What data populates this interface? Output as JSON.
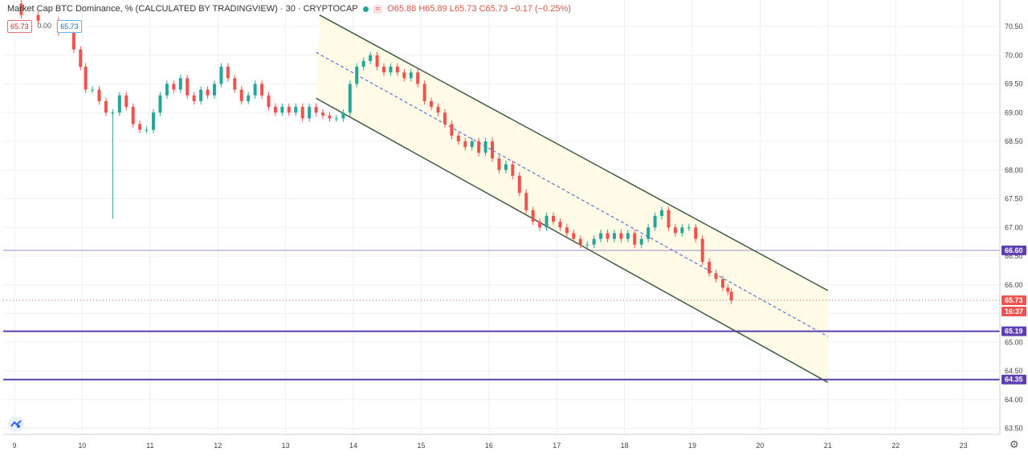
{
  "header": {
    "title": "Market Cap BTC Dominance, % (CALCULATED BY TRADINGVIEW) · 30 · CRYPTOCAP",
    "open_label": "O",
    "open": "65.88",
    "high_label": "H",
    "high": "65.89",
    "low_label": "L",
    "low": "65.73",
    "close_label": "C",
    "close": "65.73",
    "change": "−0.17 (−0.25%)"
  },
  "value_boxes": [
    "65.73",
    "0.00",
    "65.73"
  ],
  "price_labels": {
    "last_price": "65.73",
    "countdown": "16:37",
    "level_a": "66.60",
    "level_b": "65.19",
    "level_c": "64.35"
  },
  "colors": {
    "up": "#26a69a",
    "down": "#ef5350",
    "channel_line": "#3d5a45",
    "channel_fill": "#fffbe6",
    "midline": "#3d5bd9",
    "level": "#5b3fb0",
    "level_thin": "#9a8fd0"
  },
  "icons": {
    "logo": "tradingview-logo-icon",
    "settings": "gear-icon"
  },
  "chart_data": {
    "type": "candlestick",
    "ylim": [
      63.5,
      70.5
    ],
    "y_ticks": [
      "63.50",
      "64.00",
      "64.50",
      "65.00",
      "65.50",
      "66.00",
      "66.50",
      "67.00",
      "67.50",
      "68.00",
      "68.50",
      "69.00",
      "69.50",
      "70.00",
      "70.50"
    ],
    "x_ticks": [
      {
        "label": "9",
        "x": 9
      },
      {
        "label": "10",
        "x": 10
      },
      {
        "label": "11",
        "x": 11
      },
      {
        "label": "12",
        "x": 12
      },
      {
        "label": "13",
        "x": 13
      },
      {
        "label": "14",
        "x": 14
      },
      {
        "label": "15",
        "x": 15
      },
      {
        "label": "16",
        "x": 16
      },
      {
        "label": "17",
        "x": 17
      },
      {
        "label": "18",
        "x": 18
      },
      {
        "label": "19",
        "x": 19
      },
      {
        "label": "20",
        "x": 20
      },
      {
        "label": "21",
        "x": 21
      },
      {
        "label": "22",
        "x": 22
      },
      {
        "label": "23",
        "x": 23
      }
    ],
    "xlim": [
      9,
      23.6
    ],
    "price_path": [
      [
        9.0,
        70.9
      ],
      [
        9.2,
        70.7
      ],
      [
        9.5,
        70.6
      ],
      [
        9.8,
        70.4
      ],
      [
        9.95,
        70.1
      ],
      [
        10.0,
        69.8
      ],
      [
        10.1,
        69.4
      ],
      [
        10.2,
        69.4
      ],
      [
        10.3,
        69.2
      ],
      [
        10.4,
        69.0
      ],
      [
        10.5,
        69.0
      ],
      [
        10.6,
        69.3
      ],
      [
        10.7,
        69.1
      ],
      [
        10.8,
        68.8
      ],
      [
        10.9,
        68.7
      ],
      [
        11.0,
        68.7
      ],
      [
        11.1,
        69.0
      ],
      [
        11.2,
        69.3
      ],
      [
        11.3,
        69.5
      ],
      [
        11.4,
        69.4
      ],
      [
        11.5,
        69.6
      ],
      [
        11.6,
        69.3
      ],
      [
        11.7,
        69.2
      ],
      [
        11.8,
        69.4
      ],
      [
        11.9,
        69.3
      ],
      [
        12.0,
        69.5
      ],
      [
        12.1,
        69.8
      ],
      [
        12.2,
        69.6
      ],
      [
        12.3,
        69.4
      ],
      [
        12.4,
        69.2
      ],
      [
        12.5,
        69.3
      ],
      [
        12.6,
        69.5
      ],
      [
        12.7,
        69.3
      ],
      [
        12.8,
        69.1
      ],
      [
        12.9,
        69.0
      ],
      [
        13.0,
        69.1
      ],
      [
        13.1,
        69.0
      ],
      [
        13.2,
        69.1
      ],
      [
        13.3,
        68.9
      ],
      [
        13.4,
        69.1
      ],
      [
        13.5,
        69.0
      ],
      [
        13.6,
        68.95
      ],
      [
        13.7,
        68.9
      ],
      [
        13.8,
        68.9
      ],
      [
        13.9,
        69.0
      ],
      [
        14.0,
        69.5
      ],
      [
        14.1,
        69.8
      ],
      [
        14.2,
        69.9
      ],
      [
        14.3,
        70.0
      ],
      [
        14.4,
        69.8
      ],
      [
        14.5,
        69.7
      ],
      [
        14.6,
        69.8
      ],
      [
        14.7,
        69.7
      ],
      [
        14.8,
        69.6
      ],
      [
        14.9,
        69.7
      ],
      [
        15.0,
        69.5
      ],
      [
        15.1,
        69.2
      ],
      [
        15.2,
        69.1
      ],
      [
        15.3,
        69.0
      ],
      [
        15.4,
        68.8
      ],
      [
        15.5,
        68.6
      ],
      [
        15.6,
        68.5
      ],
      [
        15.7,
        68.4
      ],
      [
        15.8,
        68.5
      ],
      [
        15.9,
        68.3
      ],
      [
        16.0,
        68.5
      ],
      [
        16.1,
        68.2
      ],
      [
        16.2,
        68.0
      ],
      [
        16.3,
        68.1
      ],
      [
        16.4,
        67.9
      ],
      [
        16.5,
        67.6
      ],
      [
        16.6,
        67.3
      ],
      [
        16.7,
        67.1
      ],
      [
        16.8,
        67.0
      ],
      [
        16.9,
        67.2
      ],
      [
        17.0,
        67.1
      ],
      [
        17.1,
        67.0
      ],
      [
        17.2,
        66.9
      ],
      [
        17.3,
        66.8
      ],
      [
        17.4,
        66.7
      ],
      [
        17.5,
        66.7
      ],
      [
        17.6,
        66.8
      ],
      [
        17.7,
        66.9
      ],
      [
        17.8,
        66.8
      ],
      [
        17.9,
        66.9
      ],
      [
        18.0,
        66.8
      ],
      [
        18.1,
        66.9
      ],
      [
        18.2,
        66.7
      ],
      [
        18.3,
        66.8
      ],
      [
        18.4,
        67.0
      ],
      [
        18.5,
        67.2
      ],
      [
        18.6,
        67.3
      ],
      [
        18.7,
        67.0
      ],
      [
        18.8,
        66.9
      ],
      [
        18.9,
        67.0
      ],
      [
        19.0,
        67.0
      ],
      [
        19.1,
        66.8
      ],
      [
        19.2,
        66.4
      ],
      [
        19.3,
        66.2
      ],
      [
        19.4,
        66.1
      ],
      [
        19.5,
        65.95
      ],
      [
        19.55,
        65.88
      ],
      [
        19.6,
        65.73
      ]
    ],
    "overlays": {
      "channel_upper": [
        [
          13.5,
          70.7
        ],
        [
          21.0,
          65.9
        ]
      ],
      "channel_lower": [
        [
          13.45,
          69.25
        ],
        [
          21.0,
          64.3
        ]
      ],
      "channel_mid": [
        [
          13.45,
          70.05
        ],
        [
          21.0,
          65.1
        ]
      ],
      "levels": [
        66.6,
        65.19,
        64.35
      ],
      "last_price": 65.73,
      "spike_low": [
        10.45,
        67.15
      ]
    }
  }
}
